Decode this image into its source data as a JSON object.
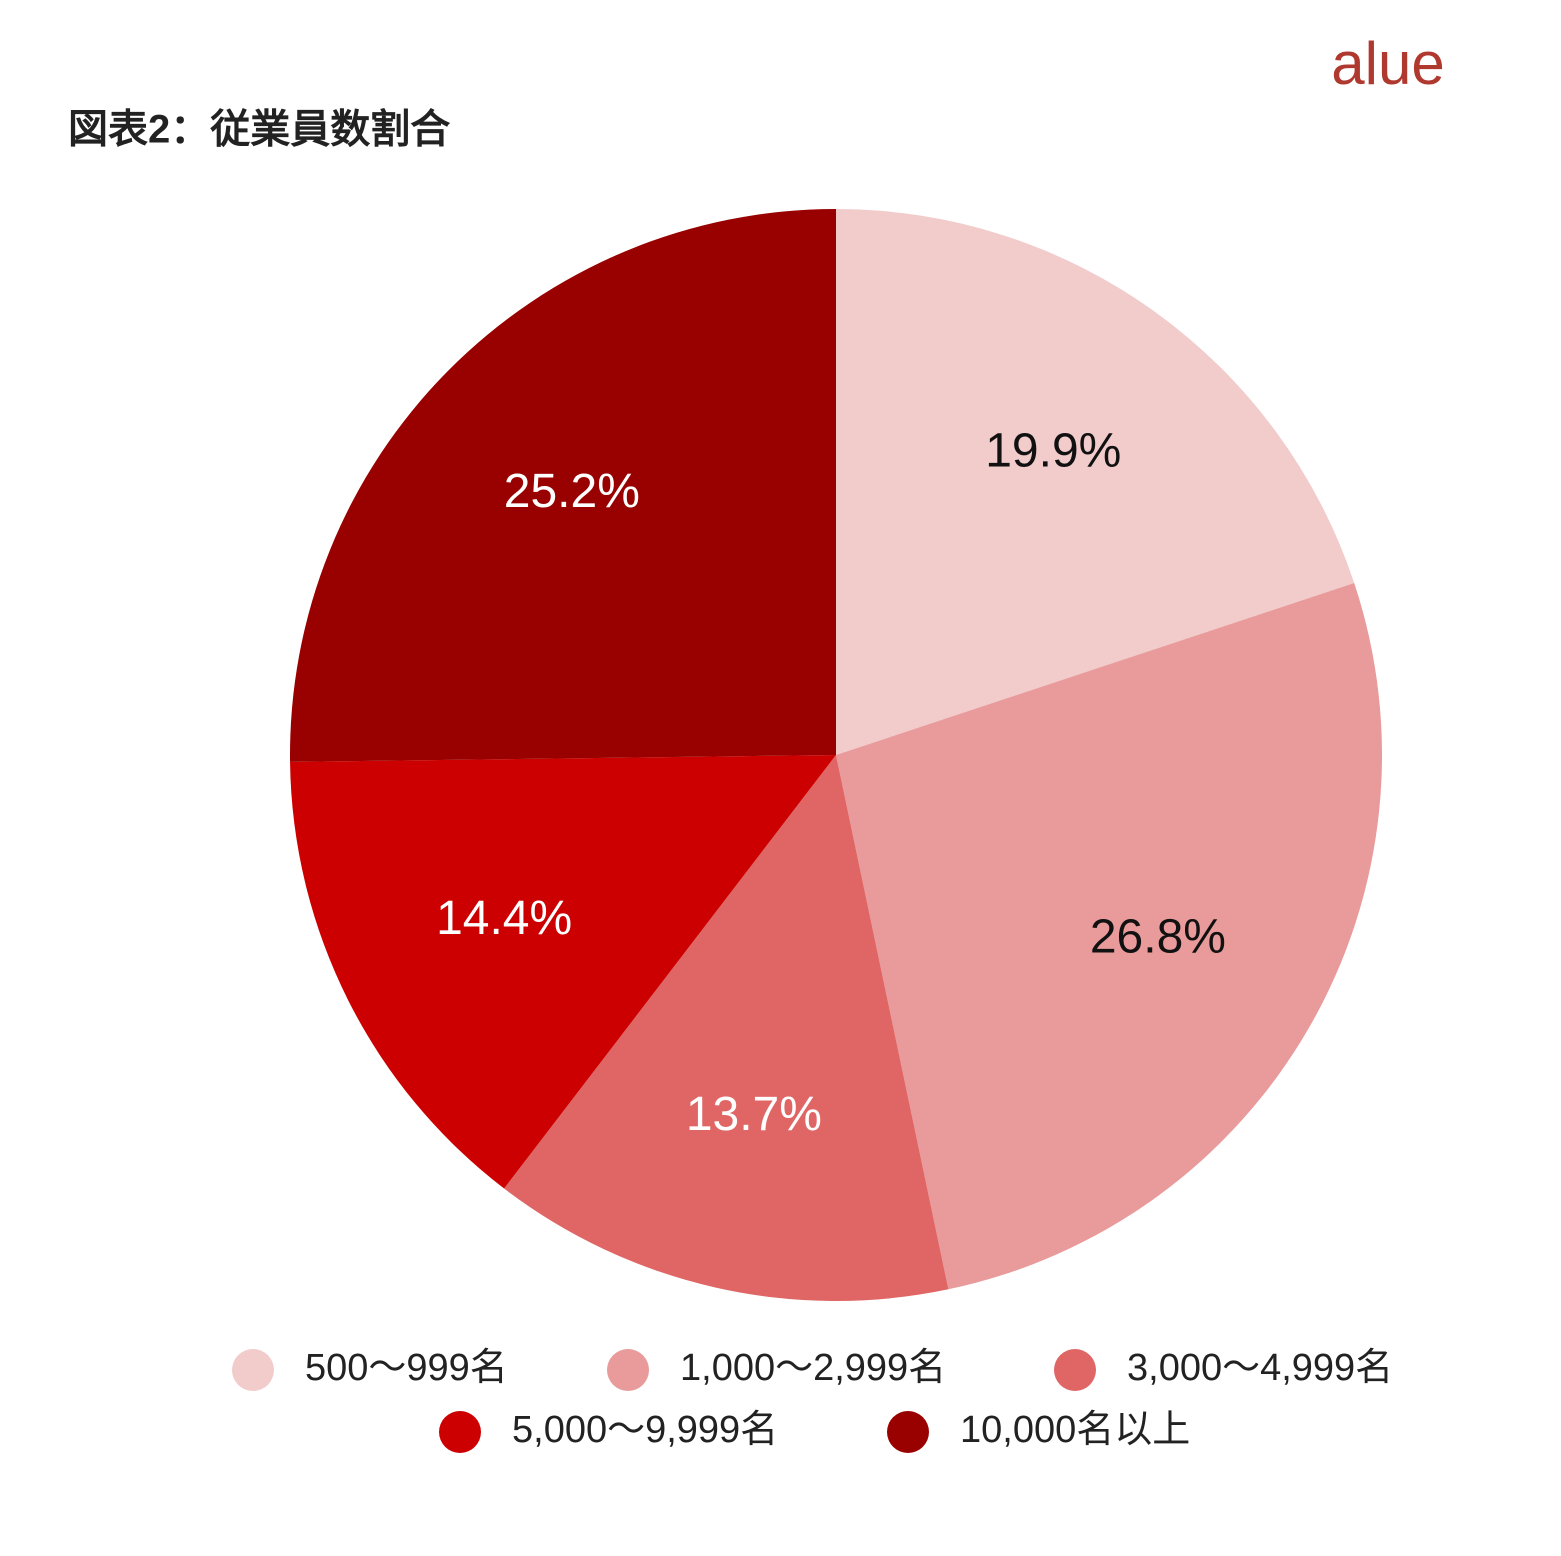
{
  "brand": "alue",
  "chart_data": {
    "type": "pie",
    "title": "図表2：従業員数割合",
    "categories": [
      "500〜999名",
      "1,000〜2,999名",
      "3,000〜4,999名",
      "5,000〜9,999名",
      "10,000名以上"
    ],
    "values": [
      19.9,
      26.8,
      13.7,
      14.4,
      25.2
    ],
    "value_labels": [
      "19.9%",
      "26.8%",
      "13.7%",
      "14.4%",
      "25.2%"
    ],
    "colors": [
      "#f2cbcb",
      "#e99a9a",
      "#e06666",
      "#cc0000",
      "#990000"
    ],
    "label_colors": [
      "#111111",
      "#111111",
      "#ffffff",
      "#ffffff",
      "#ffffff"
    ],
    "legend": "bottom"
  }
}
